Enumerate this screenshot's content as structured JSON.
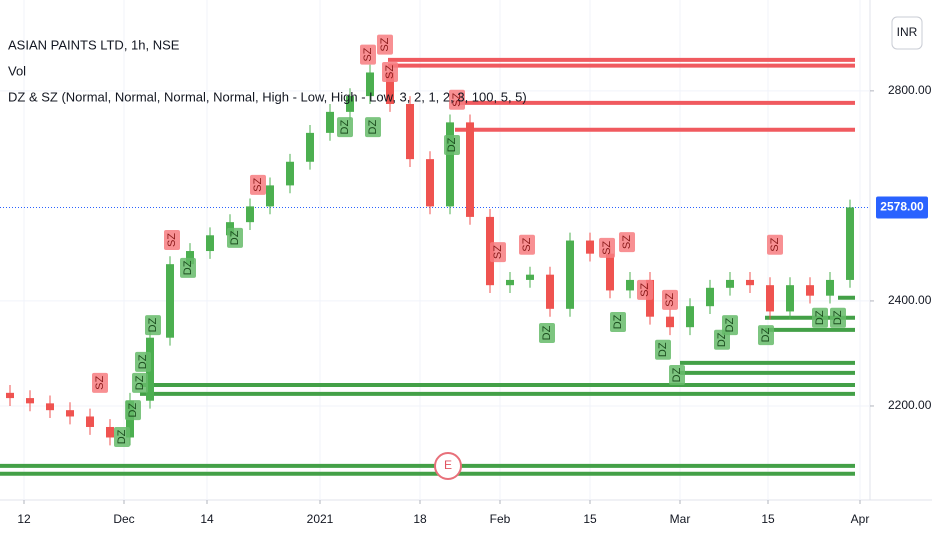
{
  "chart_data": {
    "type": "candlestick",
    "title": "ASIAN PAINTS LTD, 1h, NSE",
    "indicators": [
      "Vol",
      "DZ & SZ (Normal, Normal, Normal, Normal, High - Low, High - Low, 3, 2, 1, 2, 3, 100, 5, 5)"
    ],
    "currency_button": "INR",
    "earnings_marker": "E",
    "open": [
      2225,
      2215,
      2205,
      2192,
      2180,
      2160,
      2140,
      2210,
      2330,
      2470,
      2495,
      2525,
      2550,
      2580,
      2620,
      2665,
      2720,
      2760,
      2790,
      2835,
      2775,
      2670,
      2580,
      2740,
      2560,
      2430,
      2440,
      2450,
      2385,
      2515,
      2490,
      2420,
      2440,
      2370,
      2350,
      2390,
      2425,
      2440,
      2430,
      2380,
      2430,
      2410,
      2440
    ],
    "high": [
      2240,
      2230,
      2220,
      2207,
      2195,
      2175,
      2225,
      2345,
      2485,
      2510,
      2540,
      2565,
      2595,
      2635,
      2680,
      2735,
      2775,
      2805,
      2850,
      2850,
      2790,
      2685,
      2755,
      2755,
      2575,
      2455,
      2465,
      2465,
      2530,
      2530,
      2505,
      2455,
      2455,
      2385,
      2405,
      2440,
      2455,
      2455,
      2445,
      2445,
      2445,
      2455,
      2593
    ],
    "low": [
      2200,
      2190,
      2177,
      2165,
      2145,
      2125,
      2125,
      2195,
      2315,
      2455,
      2480,
      2510,
      2535,
      2565,
      2605,
      2650,
      2705,
      2745,
      2775,
      2760,
      2655,
      2565,
      2565,
      2545,
      2415,
      2415,
      2425,
      2370,
      2370,
      2475,
      2405,
      2405,
      2355,
      2335,
      2335,
      2375,
      2410,
      2415,
      2365,
      2365,
      2395,
      2395,
      2425
    ],
    "close": [
      2215,
      2205,
      2192,
      2180,
      2160,
      2140,
      2210,
      2330,
      2470,
      2495,
      2525,
      2550,
      2580,
      2620,
      2665,
      2720,
      2760,
      2790,
      2835,
      2775,
      2670,
      2580,
      2740,
      2560,
      2430,
      2440,
      2450,
      2385,
      2515,
      2490,
      2420,
      2440,
      2370,
      2350,
      2390,
      2425,
      2440,
      2430,
      2380,
      2430,
      2410,
      2440,
      2578
    ],
    "up_color": "#4caf50",
    "down_color": "#ef5350",
    "xlim": [
      -0.5,
      43
    ],
    "xticks": [
      {
        "value": 0.7,
        "label": "12"
      },
      {
        "value": 5.7,
        "label": "Dec"
      },
      {
        "value": 9.85,
        "label": "14"
      },
      {
        "value": 15.5,
        "label": "2021"
      },
      {
        "value": 20.5,
        "label": "18"
      },
      {
        "value": 24.5,
        "label": "Feb"
      },
      {
        "value": 29,
        "label": "15"
      },
      {
        "value": 33.5,
        "label": "Mar"
      },
      {
        "value": 37.9,
        "label": "15"
      },
      {
        "value": 42.5,
        "label": "Apr"
      }
    ],
    "ylim": [
      2040,
      2973
    ],
    "yticks": [
      {
        "value": 2200,
        "label": "2200.00"
      },
      {
        "value": 2400,
        "label": "2400.00"
      },
      {
        "value": 2800,
        "label": "2800.00"
      }
    ],
    "grid": true,
    "last_price": 2578,
    "last_price_label": "2578.00",
    "supply_zones": [
      {
        "price": 2859,
        "start": 18.9
      },
      {
        "price": 2848,
        "start": 18.9
      },
      {
        "price": 2777,
        "start": 22.25
      },
      {
        "price": 2726,
        "start": 22.25
      }
    ],
    "demand_zones": [
      {
        "price": 2406,
        "start": 41.4
      },
      {
        "price": 2368,
        "start": 37.75
      },
      {
        "price": 2345,
        "start": 37.75
      },
      {
        "price": 2282,
        "start": 33.5
      },
      {
        "price": 2263,
        "start": 33.5
      },
      {
        "price": 2240,
        "start": 6.5
      },
      {
        "price": 2223,
        "start": 6.5
      },
      {
        "price": 2086,
        "start": -0.5
      },
      {
        "price": 2071,
        "start": -0.5
      }
    ],
    "zone_end": 42.25,
    "zone_labels": [
      {
        "label": "SZ",
        "x": 4.5,
        "price": 2244
      },
      {
        "label": "SZ",
        "x": 8.1,
        "price": 2516
      },
      {
        "label": "SZ",
        "x": 12.4,
        "price": 2621
      },
      {
        "label": "SZ",
        "x": 17.9,
        "price": 2869
      },
      {
        "label": "SZ",
        "x": 18.75,
        "price": 2888
      },
      {
        "label": "SZ",
        "x": 19,
        "price": 2836
      },
      {
        "label": "SZ",
        "x": 22.35,
        "price": 2783
      },
      {
        "label": "SZ",
        "x": 24.4,
        "price": 2493
      },
      {
        "label": "SZ",
        "x": 25.85,
        "price": 2507
      },
      {
        "label": "SZ",
        "x": 29.85,
        "price": 2501
      },
      {
        "label": "SZ",
        "x": 30.85,
        "price": 2512
      },
      {
        "label": "SZ",
        "x": 31.75,
        "price": 2421
      },
      {
        "label": "SZ",
        "x": 33,
        "price": 2402
      },
      {
        "label": "SZ",
        "x": 38.25,
        "price": 2507
      },
      {
        "label": "DZ",
        "x": 5.6,
        "price": 2141
      },
      {
        "label": "DZ",
        "x": 6.15,
        "price": 2192
      },
      {
        "label": "DZ",
        "x": 6.5,
        "price": 2244
      },
      {
        "label": "DZ",
        "x": 6.65,
        "price": 2284
      },
      {
        "label": "DZ",
        "x": 7.15,
        "price": 2354
      },
      {
        "label": "DZ",
        "x": 8.9,
        "price": 2463
      },
      {
        "label": "DZ",
        "x": 11.25,
        "price": 2520
      },
      {
        "label": "DZ",
        "x": 16.75,
        "price": 2731
      },
      {
        "label": "DZ",
        "x": 18.15,
        "price": 2731
      },
      {
        "label": "DZ",
        "x": 22.1,
        "price": 2697
      },
      {
        "label": "DZ",
        "x": 26.85,
        "price": 2339
      },
      {
        "label": "DZ",
        "x": 30.4,
        "price": 2360
      },
      {
        "label": "DZ",
        "x": 32.65,
        "price": 2307
      },
      {
        "label": "DZ",
        "x": 33.35,
        "price": 2259
      },
      {
        "label": "DZ",
        "x": 35.6,
        "price": 2326
      },
      {
        "label": "DZ",
        "x": 36,
        "price": 2354
      },
      {
        "label": "DZ",
        "x": 37.8,
        "price": 2335
      },
      {
        "label": "DZ",
        "x": 40.5,
        "price": 2368
      },
      {
        "label": "DZ",
        "x": 41.4,
        "price": 2368
      }
    ]
  }
}
